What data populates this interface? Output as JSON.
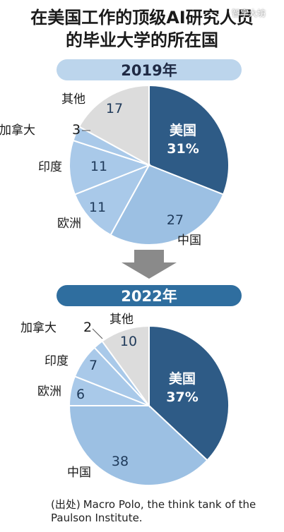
{
  "title": {
    "line1": "在美国工作的顶级AI研究人员",
    "line2": "的毕业大学的所在国"
  },
  "watermark": "智字大坊",
  "source": {
    "prefix": "(出处)",
    "text": "Macro Polo, the think tank of the Paulson Institute."
  },
  "colors": {
    "usa": "#2e5b86",
    "china": "#9cc0e3",
    "europe": "#a9c9e9",
    "india": "#a9c9e9",
    "canada": "#a9c9e9",
    "other": "#dcdcdc",
    "banner_2019": "#bcd5ec",
    "banner_2022": "#2f6e9f",
    "arrow": "#8a8a8a"
  },
  "chart_data": [
    {
      "type": "pie",
      "title": "2019年",
      "slices": [
        {
          "label": "美国",
          "value": 31,
          "display": "31%",
          "color_key": "usa"
        },
        {
          "label": "中国",
          "value": 27,
          "display": "27",
          "color_key": "china"
        },
        {
          "label": "欧洲",
          "value": 11,
          "display": "11",
          "color_key": "europe"
        },
        {
          "label": "印度",
          "value": 11,
          "display": "11",
          "color_key": "india"
        },
        {
          "label": "加拿大",
          "value": 3,
          "display": "3",
          "color_key": "canada"
        },
        {
          "label": "其他",
          "value": 17,
          "display": "17",
          "color_key": "other"
        }
      ]
    },
    {
      "type": "pie",
      "title": "2022年",
      "slices": [
        {
          "label": "美国",
          "value": 37,
          "display": "37%",
          "color_key": "usa"
        },
        {
          "label": "中国",
          "value": 38,
          "display": "38",
          "color_key": "china"
        },
        {
          "label": "欧洲",
          "value": 6,
          "display": "6",
          "color_key": "europe"
        },
        {
          "label": "印度",
          "value": 7,
          "display": "7",
          "color_key": "india"
        },
        {
          "label": "加拿大",
          "value": 2,
          "display": "2",
          "color_key": "canada"
        },
        {
          "label": "其他",
          "value": 10,
          "display": "10",
          "color_key": "other"
        }
      ]
    }
  ]
}
